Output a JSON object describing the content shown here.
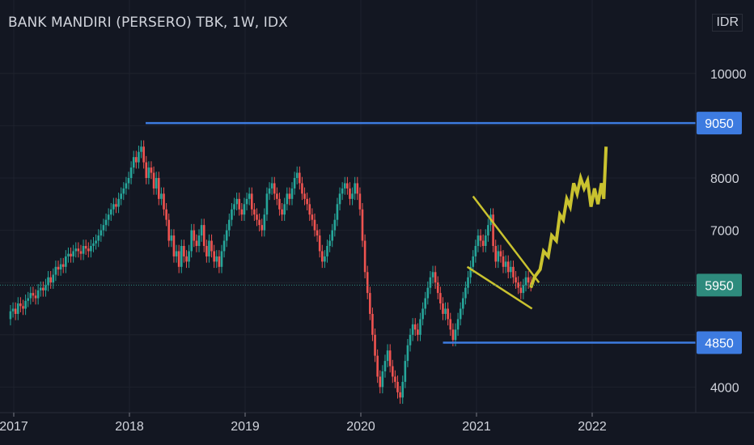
{
  "header": {
    "title": "BANK MANDIRI (PERSERO) TBK, 1W, IDX",
    "currency": "IDR"
  },
  "colors": {
    "background": "#131722",
    "grid": "#1e222d",
    "up": "#26a69a",
    "down": "#ef5350",
    "level_line": "#3d7be0",
    "current_price": "#2e8b7d",
    "projection": "#c9c22f",
    "trendline": "#c9c22f"
  },
  "chart_data": {
    "type": "candlestick",
    "x_ticks": [
      "2017",
      "2018",
      "2019",
      "2020",
      "2021",
      "2022"
    ],
    "y_ticks": [
      4000,
      7000,
      8000,
      10000
    ],
    "ylim": [
      3700,
      11200
    ],
    "price_labels": [
      {
        "value": 9050,
        "text": "9050",
        "style": "level"
      },
      {
        "value": 5950,
        "text": "5950",
        "style": "current"
      },
      {
        "value": 4850,
        "text": "4850",
        "style": "level"
      }
    ],
    "horizontal_levels": [
      {
        "value": 9050,
        "from": 2018.14,
        "to": 2023.2
      },
      {
        "value": 4850,
        "from": 2020.71,
        "to": 2023.2
      }
    ],
    "current_price": 5950,
    "trendlines": [
      {
        "from": [
          2020.97,
          7650
        ],
        "to": [
          2021.54,
          6000
        ]
      },
      {
        "from": [
          2020.92,
          6300
        ],
        "to": [
          2021.48,
          5500
        ]
      }
    ],
    "projection_path": [
      [
        2021.47,
        5900
      ],
      [
        2021.5,
        6100
      ],
      [
        2021.55,
        6250
      ],
      [
        2021.58,
        6600
      ],
      [
        2021.62,
        6500
      ],
      [
        2021.65,
        6900
      ],
      [
        2021.69,
        6800
      ],
      [
        2021.72,
        7300
      ],
      [
        2021.75,
        7200
      ],
      [
        2021.78,
        7600
      ],
      [
        2021.81,
        7450
      ],
      [
        2021.84,
        7900
      ],
      [
        2021.87,
        7700
      ],
      [
        2021.9,
        8000
      ],
      [
        2021.93,
        7800
      ],
      [
        2021.96,
        7950
      ],
      [
        2021.99,
        7450
      ],
      [
        2022.02,
        7800
      ],
      [
        2022.05,
        7500
      ],
      [
        2022.08,
        7900
      ],
      [
        2022.1,
        7600
      ],
      [
        2022.12,
        8600
      ]
    ],
    "series": [
      {
        "x": 2016.95,
        "values": [
          5300,
          5450,
          5500,
          5400,
          5600,
          5550,
          5500,
          5650,
          5700,
          5800,
          5750,
          5700,
          5850,
          5900,
          5850,
          5950,
          6100,
          6000,
          6150,
          6300,
          6250,
          6350,
          6300,
          6500,
          6550,
          6500,
          6600,
          6650,
          6600,
          6550,
          6700,
          6650,
          6600,
          6700,
          6750,
          6800,
          6900,
          7000,
          7100,
          7200,
          7300,
          7400,
          7500,
          7450,
          7600,
          7700,
          7800,
          7900,
          8000,
          8200,
          8400,
          8300,
          8500,
          8600,
          8300,
          8000,
          8200,
          8100,
          7800,
          8000,
          7600,
          7700,
          7400,
          7200,
          6800,
          6900,
          6500,
          6600,
          6300,
          6700,
          6500,
          6400,
          6600,
          7000,
          6800,
          6700,
          6900,
          7100,
          6700,
          6500,
          6800,
          6600,
          6400,
          6500,
          6300,
          6600,
          6800,
          7000,
          7200,
          7400,
          7500,
          7600,
          7400,
          7300,
          7500,
          7600,
          7700,
          7400,
          7300,
          7200,
          7100,
          7000,
          7300,
          7700,
          7800,
          7900,
          7700,
          7600,
          7400,
          7300,
          7500,
          7700,
          7600,
          7800,
          8000,
          8100,
          7900,
          7700,
          7600,
          7500,
          7300,
          7200,
          7000,
          6900,
          6600,
          6400,
          6500,
          6700,
          6800,
          7000,
          7200,
          7500,
          7700,
          7800,
          7900,
          7800,
          7600,
          7700,
          7900,
          7700,
          7400,
          6800,
          6200,
          5800,
          5400,
          5000,
          4600,
          4200,
          4000,
          4300,
          4500,
          4700,
          4400,
          4200,
          4100,
          3900,
          3800,
          4100,
          4500,
          4800,
          5000,
          5200,
          5100,
          5000,
          5300,
          5500,
          5700,
          5900,
          6100,
          6200,
          6000,
          5800,
          5600,
          5400,
          5500,
          5300,
          5100,
          4900,
          5100,
          5300,
          5500,
          5700,
          5900,
          6100,
          6300,
          6500,
          6700,
          6900,
          6800,
          6700,
          6900,
          7100,
          7300,
          6700,
          6400,
          6600,
          6500,
          6300,
          6400,
          6200,
          6300,
          6100,
          6000,
          5900,
          5800,
          5950,
          6100,
          6000,
          5950
        ]
      }
    ]
  }
}
